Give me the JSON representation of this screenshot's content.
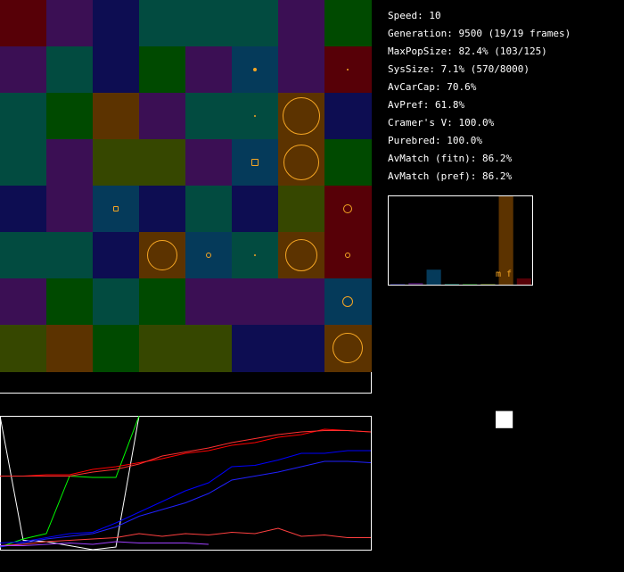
{
  "stats": [
    "Speed: 10",
    "Generation: 9500 (19/19 frames)",
    "MaxPopSize: 82.4% (103/125)",
    "SysSize: 7.1% (570/8000)",
    "AvCarCap: 70.6%",
    "AvPref: 61.8%",
    "Cramer's V: 100.0%",
    "Purebred: 100.0%",
    "AvMatch (fitn): 86.2%",
    "AvMatch (pref): 86.2%"
  ],
  "colors": {
    "maroon": "#570007",
    "purple": "#3b0f54",
    "navy": "#0d0d52",
    "teal": "#024b40",
    "green": "#004a00",
    "brown": "#5c3300",
    "olive": "#364700",
    "blue": "#053a5a",
    "marker": "#f5a623"
  },
  "grid": {
    "rows": [
      [
        "maroon",
        "purple",
        "navy",
        "teal",
        "teal",
        "teal",
        "purple",
        "green"
      ],
      [
        "purple",
        "teal",
        "navy",
        "green",
        "purple",
        "blue",
        "purple",
        "maroon"
      ],
      [
        "teal",
        "green",
        "brown",
        "purple",
        "teal",
        "teal",
        "brown",
        "navy"
      ],
      [
        "teal",
        "purple",
        "olive",
        "olive",
        "purple",
        "blue",
        "brown",
        "green"
      ],
      [
        "navy",
        "purple",
        "blue",
        "navy",
        "teal",
        "navy",
        "olive",
        "maroon"
      ],
      [
        "teal",
        "teal",
        "navy",
        "brown",
        "blue",
        "teal",
        "brown",
        "maroon"
      ],
      [
        "purple",
        "green",
        "teal",
        "green",
        "purple",
        "purple",
        "purple",
        "blue"
      ],
      [
        "olive",
        "brown",
        "green",
        "olive",
        "olive",
        "navy",
        "navy",
        "brown"
      ]
    ],
    "markers": [
      {
        "row": 1,
        "col": 5,
        "size": 4,
        "shape": "dot"
      },
      {
        "row": 1,
        "col": 7,
        "size": 2,
        "shape": "dot"
      },
      {
        "row": 2,
        "col": 5,
        "size": 2,
        "shape": "dot"
      },
      {
        "row": 2,
        "col": 6,
        "size": 42,
        "shape": "circle"
      },
      {
        "row": 3,
        "col": 5,
        "size": 8,
        "shape": "square"
      },
      {
        "row": 3,
        "col": 6,
        "size": 40,
        "shape": "circle"
      },
      {
        "row": 4,
        "col": 2,
        "size": 6,
        "shape": "square"
      },
      {
        "row": 4,
        "col": 7,
        "size": 10,
        "shape": "circle"
      },
      {
        "row": 5,
        "col": 3,
        "size": 34,
        "shape": "circle"
      },
      {
        "row": 5,
        "col": 4,
        "size": 6,
        "shape": "circle"
      },
      {
        "row": 5,
        "col": 5,
        "size": 2,
        "shape": "dot"
      },
      {
        "row": 5,
        "col": 6,
        "size": 36,
        "shape": "circle"
      },
      {
        "row": 5,
        "col": 7,
        "size": 6,
        "shape": "circle"
      },
      {
        "row": 6,
        "col": 7,
        "size": 12,
        "shape": "circle"
      },
      {
        "row": 7,
        "col": 7,
        "size": 34,
        "shape": "circle"
      }
    ]
  },
  "histogram": {
    "bars": [
      {
        "slot": 0,
        "value": 0.01,
        "color": "#0d0d52"
      },
      {
        "slot": 1,
        "value": 0.02,
        "color": "#3b0f54"
      },
      {
        "slot": 2,
        "value": 0.17,
        "color": "#053a5a"
      },
      {
        "slot": 3,
        "value": 0.01,
        "color": "#024b40"
      },
      {
        "slot": 4,
        "value": 0.01,
        "color": "#004a00"
      },
      {
        "slot": 5,
        "value": 0.01,
        "color": "#364700"
      },
      {
        "slot": 6,
        "value": 1.0,
        "color": "#5c3300"
      },
      {
        "slot": 7,
        "value": 0.07,
        "color": "#570007"
      }
    ],
    "label": "m f"
  },
  "scatter": {
    "points": [
      {
        "x": 0.81,
        "y": 0.82,
        "size": 0.12
      }
    ]
  },
  "line_chart": {
    "series": [
      {
        "color": "#ffffff",
        "values": [
          1.0,
          0.07,
          0.06,
          0.03,
          0.0,
          0.02,
          1.0
        ]
      },
      {
        "color": "#00ff00",
        "values": [
          0.02,
          0.08,
          0.12,
          0.55,
          0.54,
          0.54,
          1.0
        ]
      },
      {
        "color": "#ff0000",
        "values": [
          0.55,
          0.55,
          0.56,
          0.56,
          0.6,
          0.62,
          0.65,
          0.68,
          0.72,
          0.74,
          0.78,
          0.8,
          0.84,
          0.86,
          0.9,
          0.89,
          0.88
        ]
      },
      {
        "color": "#ff3030",
        "values": [
          0.55,
          0.55,
          0.55,
          0.55,
          0.58,
          0.6,
          0.64,
          0.7,
          0.73,
          0.76,
          0.8,
          0.83,
          0.86,
          0.88,
          0.89,
          0.89,
          0.88
        ]
      },
      {
        "color": "#0000ff",
        "values": [
          0.05,
          0.06,
          0.09,
          0.12,
          0.13,
          0.2,
          0.28,
          0.36,
          0.44,
          0.5,
          0.62,
          0.63,
          0.67,
          0.72,
          0.72,
          0.74,
          0.74
        ]
      },
      {
        "color": "#2020ff",
        "values": [
          0.02,
          0.05,
          0.08,
          0.1,
          0.12,
          0.17,
          0.25,
          0.3,
          0.35,
          0.42,
          0.52,
          0.55,
          0.58,
          0.62,
          0.66,
          0.66,
          0.65
        ]
      },
      {
        "color": "#ff4040",
        "values": [
          0.03,
          0.04,
          0.06,
          0.07,
          0.08,
          0.09,
          0.12,
          0.1,
          0.12,
          0.11,
          0.13,
          0.12,
          0.16,
          0.1,
          0.11,
          0.09,
          0.09
        ]
      },
      {
        "color": "#a040ff",
        "values": [
          0.03,
          0.03,
          0.04,
          0.05,
          0.04,
          0.06,
          0.05,
          0.05,
          0.05,
          0.04
        ]
      }
    ]
  }
}
